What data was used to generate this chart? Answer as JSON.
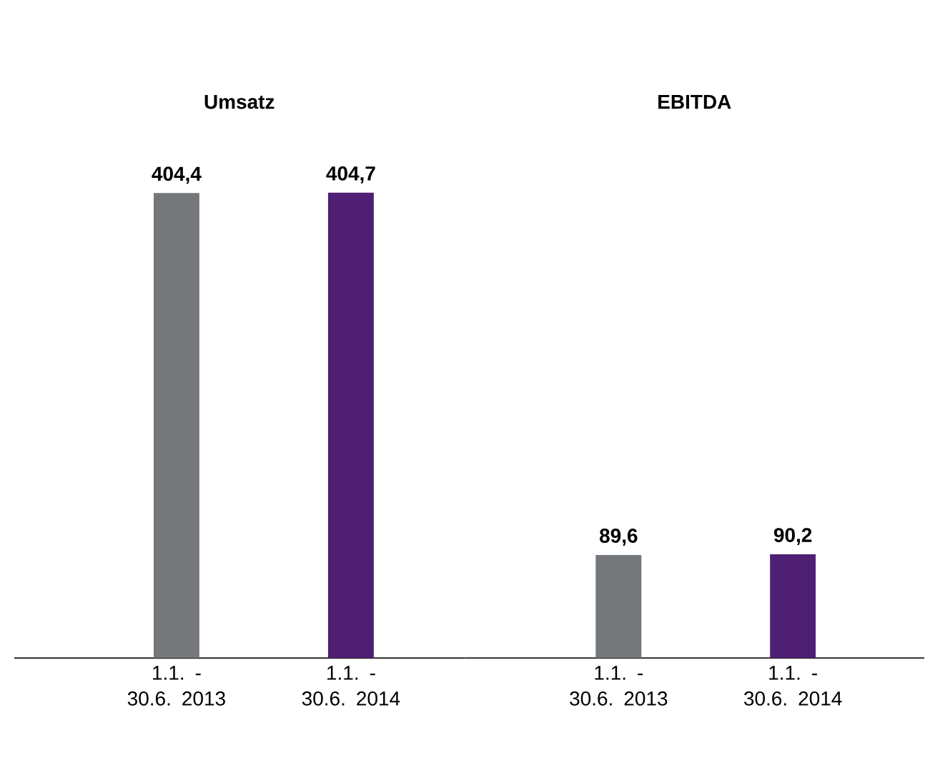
{
  "chart_data": [
    {
      "type": "bar",
      "title": "Umsatz",
      "categories": [
        "1.1. - 30.6. 2013",
        "1.1. - 30.6. 2014"
      ],
      "values": [
        404.4,
        404.7
      ],
      "colors": [
        "#75787b",
        "#4f1f73"
      ],
      "value_labels": [
        "404,4",
        "404,7"
      ]
    },
    {
      "type": "bar",
      "title": "EBITDA",
      "categories": [
        "1.1. - 30.6. 2013",
        "1.1. - 30.6. 2014"
      ],
      "values": [
        89.6,
        90.2
      ],
      "colors": [
        "#75787b",
        "#4f1f73"
      ],
      "value_labels": [
        "89,6",
        "90,2"
      ]
    }
  ]
}
